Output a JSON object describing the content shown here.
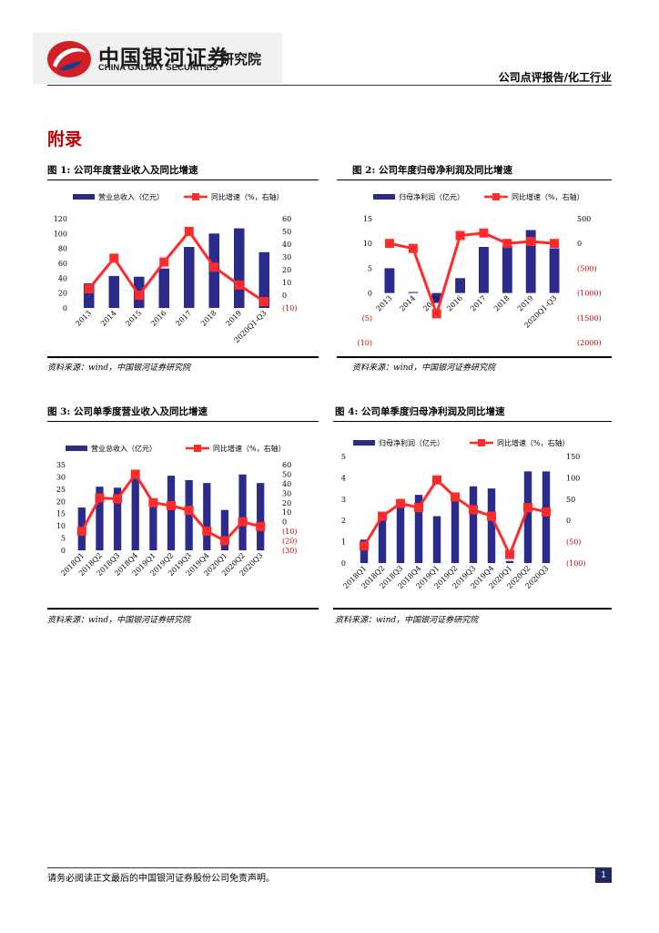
{
  "header": {
    "logo_cn": "中国银河证券",
    "logo_en": "CHINA GALAXY SECURITIES",
    "logo_institute": "研究院",
    "category": "公司点评报告/化工行业"
  },
  "section_title": "附录",
  "source_text": "资料来源：wind，中国银河证券研究院",
  "footer": {
    "disclaimer": "请务必阅读正文最后的中国银河证券股份公司免责声明。",
    "page": "1"
  },
  "colors": {
    "bar": "#2b2b8c",
    "line": "#ff2a2a",
    "axis_right": "#c00000",
    "accent": "#c00000"
  },
  "chart_data": [
    {
      "type": "bar+line",
      "title": "图 1: 公司年度营业收入及同比增速",
      "categories": [
        "2013",
        "2014",
        "2015",
        "2016",
        "2017",
        "2018",
        "2019",
        "2020Q1-Q3"
      ],
      "series": [
        {
          "name": "营业总收入（亿元）",
          "axis": "left",
          "type": "bar",
          "values": [
            33,
            43,
            42,
            53,
            82,
            100,
            107,
            75
          ]
        },
        {
          "name": "同比增速（%，右轴）",
          "axis": "right",
          "type": "line",
          "values": [
            5,
            29,
            0,
            26,
            50,
            22,
            8,
            -5
          ]
        }
      ],
      "ylim_left": [
        0,
        120
      ],
      "yticks_left": [
        "0",
        "20",
        "40",
        "60",
        "80",
        "100",
        "120"
      ],
      "ylim_right": [
        -10,
        60
      ],
      "yticks_right": [
        "(10)",
        "0",
        "10",
        "20",
        "30",
        "40",
        "50",
        "60"
      ]
    },
    {
      "type": "bar+line",
      "title": "图 2: 公司年度归母净利润及同比增速",
      "categories": [
        "2013",
        "2014",
        "2015",
        "2016",
        "2017",
        "2018",
        "2019",
        "2020Q1-Q3"
      ],
      "series": [
        {
          "name": "归母净利润（亿元）",
          "axis": "left",
          "type": "bar",
          "values": [
            5,
            0.2,
            -2,
            3,
            9.3,
            9.5,
            12.7,
            9
          ]
        },
        {
          "name": "同比增速（%，右轴）",
          "axis": "right",
          "type": "line",
          "values": [
            0,
            -100,
            -1420,
            160,
            210,
            0,
            40,
            0
          ]
        }
      ],
      "ylim_left": [
        -10,
        15
      ],
      "yticks_left": [
        "(10)",
        "(5)",
        "0",
        "5",
        "10",
        "15"
      ],
      "ylim_right": [
        -2000,
        500
      ],
      "yticks_right": [
        "(2000)",
        "(1500)",
        "(1000)",
        "(500)",
        "0",
        "500"
      ]
    },
    {
      "type": "bar+line",
      "title": "图 3: 公司单季度营业收入及同比增速",
      "categories": [
        "2018Q1",
        "2018Q2",
        "2018Q3",
        "2018Q4",
        "2019Q1",
        "2019Q2",
        "2019Q3",
        "2019Q4",
        "2020Q1",
        "2020Q2",
        "2020Q3"
      ],
      "series": [
        {
          "name": "营业总收入（亿元）",
          "axis": "left",
          "type": "bar",
          "values": [
            17.5,
            26,
            25.6,
            30,
            19.5,
            30.5,
            28.7,
            27.5,
            16.5,
            31,
            27.5
          ]
        },
        {
          "name": "同比增速（%，右轴）",
          "axis": "right",
          "type": "line",
          "values": [
            -10,
            25,
            24,
            50,
            20,
            17,
            12,
            -10,
            -20,
            0,
            -5
          ]
        }
      ],
      "ylim_left": [
        0,
        35
      ],
      "yticks_left": [
        "0",
        "5",
        "10",
        "15",
        "20",
        "25",
        "30",
        "35"
      ],
      "ylim_right": [
        -30,
        60
      ],
      "yticks_right": [
        "(30)",
        "(20)",
        "(10)",
        "0",
        "10",
        "20",
        "30",
        "40",
        "50",
        "60"
      ]
    },
    {
      "type": "bar+line",
      "title": "图 4: 公司单季度归母净利润及同比增速",
      "categories": [
        "2018Q1",
        "2018Q2",
        "2018Q3",
        "2018Q4",
        "2019Q1",
        "2019Q2",
        "2019Q3",
        "2019Q4",
        "2020Q1",
        "2020Q2",
        "2020Q3"
      ],
      "series": [
        {
          "name": "归母净利润（亿元）",
          "axis": "left",
          "type": "bar",
          "values": [
            1.1,
            2.3,
            2.8,
            3.2,
            2.2,
            3.1,
            3.6,
            3.5,
            0.1,
            4.3,
            4.3
          ]
        },
        {
          "name": "同比增速（%，右轴）",
          "axis": "right",
          "type": "line",
          "values": [
            -60,
            10,
            40,
            30,
            95,
            55,
            25,
            10,
            -80,
            30,
            20
          ]
        }
      ],
      "ylim_left": [
        0,
        5
      ],
      "yticks_left": [
        "0",
        "1",
        "2",
        "3",
        "4",
        "5"
      ],
      "ylim_right": [
        -100,
        150
      ],
      "yticks_right": [
        "(100)",
        "(50)",
        "0",
        "50",
        "100",
        "150"
      ]
    }
  ]
}
